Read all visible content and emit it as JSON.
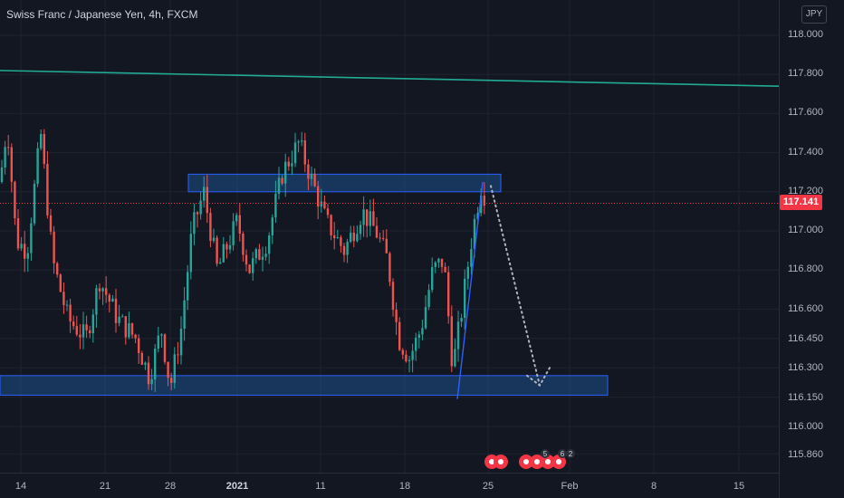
{
  "header": {
    "title": "Swiss Franc / Japanese Yen, 4h, FXCM",
    "currency_button": "JPY"
  },
  "price_axis": {
    "ticks": [
      "118.000",
      "117.800",
      "117.600",
      "117.400",
      "117.200",
      "117.000",
      "116.800",
      "116.600",
      "116.450",
      "116.300",
      "116.150",
      "116.000",
      "115.860"
    ],
    "last_price": "117.141"
  },
  "time_axis": {
    "ticks": [
      {
        "label": "14",
        "bold": false
      },
      {
        "label": "21",
        "bold": false
      },
      {
        "label": "28",
        "bold": false
      },
      {
        "label": "2021",
        "bold": true
      },
      {
        "label": "11",
        "bold": false
      },
      {
        "label": "18",
        "bold": false
      },
      {
        "label": "25",
        "bold": false
      },
      {
        "label": "Feb",
        "bold": false
      },
      {
        "label": "8",
        "bold": false
      },
      {
        "label": "15",
        "bold": false
      }
    ]
  },
  "events": {
    "badges": [
      "5",
      "6",
      "2"
    ]
  },
  "colors": {
    "background": "#131722",
    "up": "#26a69a",
    "down": "#ef5350",
    "zone_fill": "#1e4f8a",
    "zone_border": "#2962ff",
    "trendline": "#22ab94",
    "rising_line": "#2962ff",
    "price_line": "#f23645",
    "projection": "#b2b5be"
  },
  "chart_data": {
    "type": "candlestick",
    "symbol": "CHFJPY",
    "interval": "4h",
    "ylim": [
      115.78,
      118.08
    ],
    "last_price": 117.141,
    "candles_approx": [
      {
        "x": 14,
        "o": 117.35,
        "h": 117.7,
        "l": 117.05,
        "c": 117.1
      },
      {
        "x": 21,
        "o": 116.8,
        "h": 117.05,
        "l": 116.45,
        "c": 116.7
      },
      {
        "x": 28,
        "o": 116.25,
        "h": 116.45,
        "l": 116.15,
        "c": 116.35
      },
      {
        "x": "2021",
        "o": 117.05,
        "h": 117.25,
        "l": 116.65,
        "c": 116.9
      },
      {
        "x": 11,
        "o": 117.25,
        "h": 117.6,
        "l": 117.05,
        "c": 117.4
      },
      {
        "x": 18,
        "o": 116.95,
        "h": 117.25,
        "l": 116.3,
        "c": 116.55
      },
      {
        "x": 25,
        "o": 116.4,
        "h": 117.3,
        "l": 116.2,
        "c": 117.14
      }
    ],
    "zones": [
      {
        "name": "resistance",
        "y_low": 117.2,
        "y_high": 117.29
      },
      {
        "name": "support",
        "y_low": 116.16,
        "y_high": 116.26
      }
    ],
    "trendline": {
      "y_start": 117.82,
      "y_end": 117.74
    },
    "projection_path": [
      117.23,
      116.76,
      116.21,
      116.28
    ]
  }
}
